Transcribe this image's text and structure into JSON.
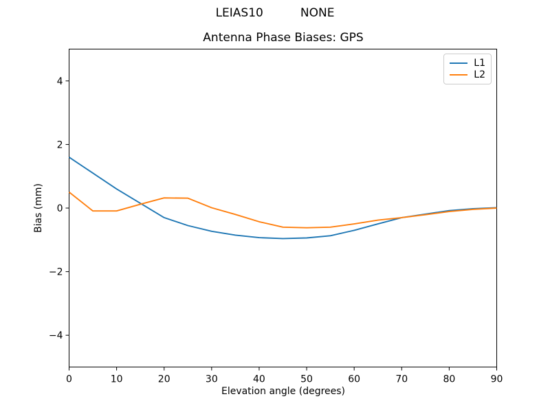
{
  "window": {
    "background": "#ffffff",
    "suptitle": "LEIAS10          NONE"
  },
  "chart_data": {
    "type": "line",
    "title": "Antenna Phase Biases: GPS",
    "xlabel": "Elevation angle (degrees)",
    "ylabel": "Bias (mm)",
    "xlim": [
      0,
      90
    ],
    "ylim": [
      -5,
      5
    ],
    "xticks": [
      0,
      10,
      20,
      30,
      40,
      50,
      60,
      70,
      80,
      90
    ],
    "yticks": [
      -4,
      -2,
      0,
      2,
      4
    ],
    "grid": false,
    "legend_position": "upper right",
    "x": [
      0,
      5,
      10,
      15,
      20,
      25,
      30,
      35,
      40,
      45,
      50,
      55,
      60,
      65,
      70,
      75,
      80,
      85,
      90
    ],
    "series": [
      {
        "name": "L1",
        "color": "#1f77b4",
        "values": [
          1.6,
          1.1,
          0.6,
          0.15,
          -0.3,
          -0.55,
          -0.73,
          -0.85,
          -0.93,
          -0.96,
          -0.94,
          -0.87,
          -0.7,
          -0.5,
          -0.3,
          -0.19,
          -0.08,
          -0.02,
          0.01
        ]
      },
      {
        "name": "L2",
        "color": "#ff7f0e",
        "values": [
          0.5,
          -0.09,
          -0.09,
          0.12,
          0.32,
          0.31,
          0.01,
          -0.2,
          -0.43,
          -0.6,
          -0.62,
          -0.6,
          -0.5,
          -0.38,
          -0.3,
          -0.21,
          -0.11,
          -0.04,
          0.0
        ]
      }
    ],
    "axes_color": "#000000",
    "tick_length": 5
  }
}
